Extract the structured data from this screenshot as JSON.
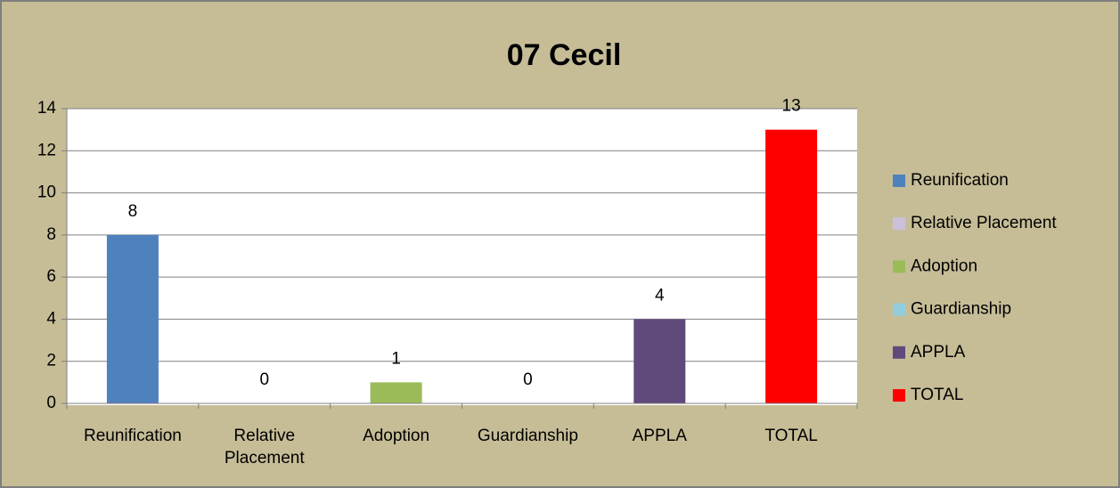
{
  "chart_data": {
    "type": "bar",
    "title": "07 Cecil",
    "categories": [
      "Reunification",
      "Relative Placement",
      "Adoption",
      "Guardianship",
      "APPLA",
      "TOTAL"
    ],
    "values": [
      8,
      0,
      1,
      0,
      4,
      13
    ],
    "colors": [
      "#4f81bd",
      "#ccc1da",
      "#9bbb59",
      "#93cddd",
      "#604a7b",
      "#ff0000"
    ],
    "ylim": [
      0,
      14
    ],
    "yticks": [
      0,
      2,
      4,
      6,
      8,
      10,
      12,
      14
    ],
    "grid": true,
    "legend": "right"
  }
}
